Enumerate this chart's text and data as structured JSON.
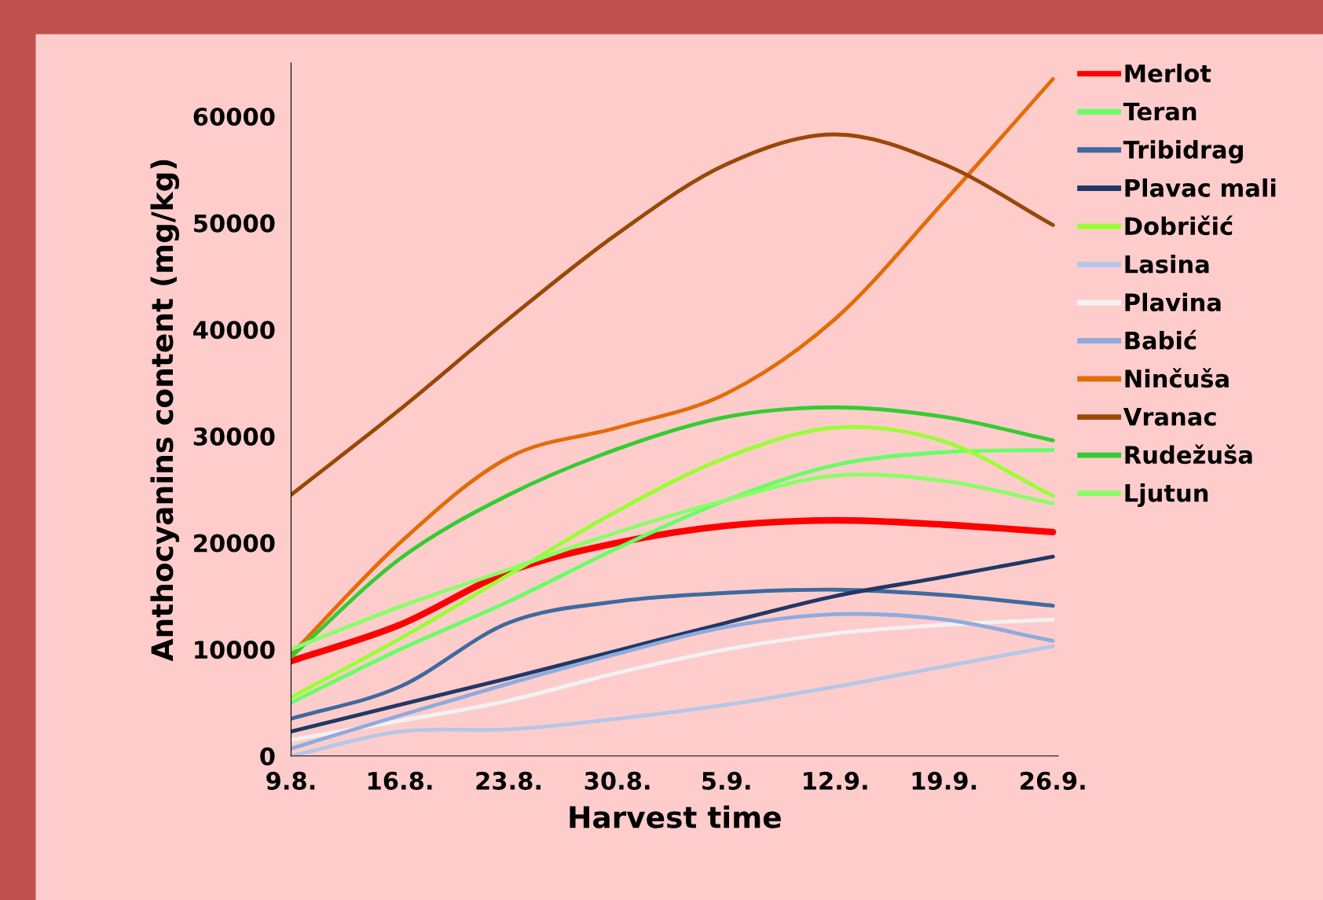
{
  "chart_data": {
    "type": "line",
    "xlabel": "Harvest time",
    "ylabel": "Anthocyanins content (mg/kg)",
    "categories": [
      "9.8.",
      "16.8.",
      "23.8.",
      "30.8.",
      "5.9.",
      "12.9.",
      "19.9.",
      "26.9."
    ],
    "ylim": [
      0,
      65000
    ],
    "yticks": [
      0,
      10000,
      20000,
      30000,
      40000,
      50000,
      60000
    ],
    "grid": false,
    "legend": "right",
    "marker": "none",
    "series": [
      {
        "name": "Merlot",
        "color": "#ff0000",
        "values": [
          8900,
          12300,
          17300,
          20000,
          21600,
          22100,
          21700,
          21000
        ]
      },
      {
        "name": "Teran",
        "color": "#66ff66",
        "values": [
          5000,
          10000,
          14500,
          19500,
          24000,
          27300,
          28500,
          28700
        ]
      },
      {
        "name": "Tribidrag",
        "color": "#3f6aa0",
        "values": [
          3500,
          6500,
          12500,
          14500,
          15300,
          15600,
          15100,
          14100
        ]
      },
      {
        "name": "Plavac mali",
        "color": "#1f3864",
        "values": [
          2300,
          4800,
          7300,
          9900,
          12500,
          15000,
          16800,
          18700
        ]
      },
      {
        "name": "Dobričić",
        "color": "#99ff33",
        "values": [
          5500,
          11000,
          17000,
          23000,
          28000,
          30800,
          29500,
          24400
        ]
      },
      {
        "name": "Lasina",
        "color": "#b4c7e7",
        "values": [
          0,
          2300,
          2500,
          3500,
          4800,
          6500,
          8400,
          10300
        ]
      },
      {
        "name": "Plavina",
        "color": "#f2f2f2",
        "values": [
          1500,
          3300,
          5200,
          7800,
          10000,
          11500,
          12300,
          12800
        ]
      },
      {
        "name": "Babić",
        "color": "#8faadc",
        "values": [
          700,
          3800,
          6800,
          9600,
          12100,
          13300,
          12800,
          10800
        ]
      },
      {
        "name": "Ninčuša",
        "color": "#e36c09",
        "values": [
          9500,
          20000,
          28000,
          30800,
          34000,
          41000,
          52000,
          63500
        ]
      },
      {
        "name": "Vranac",
        "color": "#984807",
        "values": [
          24500,
          32500,
          41000,
          49000,
          55500,
          58300,
          55500,
          49800
        ]
      },
      {
        "name": "Rudežuša",
        "color": "#33cc33",
        "values": [
          9300,
          18500,
          24500,
          28800,
          31800,
          32700,
          31800,
          29600
        ]
      },
      {
        "name": "Ljutun",
        "color": "#88ff66",
        "values": [
          10000,
          14000,
          17500,
          21000,
          24000,
          26300,
          25800,
          23700
        ]
      }
    ]
  }
}
